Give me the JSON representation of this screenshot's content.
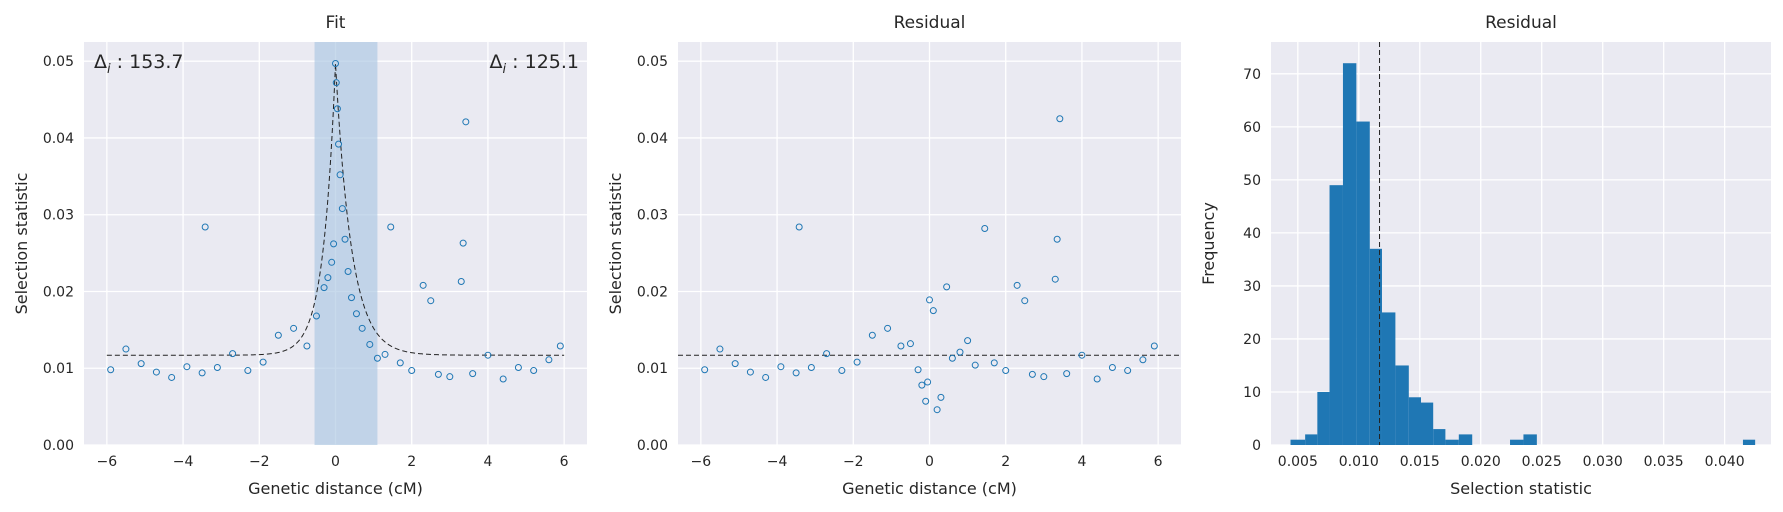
{
  "chart_data": [
    {
      "type": "scatter",
      "title": "Fit",
      "xlabel": "Genetic distance (cM)",
      "ylabel": "Selection statistic",
      "xlim": [
        -6.6,
        6.6
      ],
      "ylim": [
        0,
        0.0525
      ],
      "xticks": [
        -6,
        -4,
        -2,
        0,
        2,
        4,
        6
      ],
      "xtick_labels": [
        "−6",
        "−4",
        "−2",
        "0",
        "2",
        "4",
        "6"
      ],
      "yticks": [
        0,
        0.01,
        0.02,
        0.03,
        0.04,
        0.05
      ],
      "ytick_labels": [
        "0.00",
        "0.01",
        "0.02",
        "0.03",
        "0.04",
        "0.05"
      ],
      "grid": true,
      "annotations": [
        {
          "prefix": "Δ",
          "sub": "i",
          "suffix": " : 153.7",
          "position": "top-left"
        },
        {
          "prefix": "Δ",
          "sub": "i",
          "suffix": " : 125.1",
          "position": "top-right"
        }
      ],
      "shaded_span": {
        "x0": -0.55,
        "x1": 1.1
      },
      "fit_curve": {
        "baseline": 0.0117,
        "peak": 0.0497,
        "peak_x": 0.0,
        "left_decay": 0.32,
        "right_decay": 0.42
      },
      "points": {
        "x": [
          -5.9,
          -5.5,
          -5.1,
          -4.7,
          -4.3,
          -3.9,
          -3.5,
          -3.42,
          -3.1,
          -2.7,
          -2.3,
          -1.9,
          -1.5,
          -1.1,
          -0.75,
          -0.5,
          -0.3,
          -0.2,
          -0.1,
          -0.05,
          0.0,
          0.02,
          0.05,
          0.08,
          0.12,
          0.18,
          0.25,
          0.33,
          0.42,
          0.55,
          0.7,
          0.9,
          1.1,
          1.3,
          1.45,
          1.7,
          2.0,
          2.3,
          2.5,
          2.7,
          3.0,
          3.3,
          3.35,
          3.42,
          3.6,
          4.0,
          4.4,
          4.8,
          5.2,
          5.6,
          5.9
        ],
        "y": [
          0.0098,
          0.0125,
          0.0106,
          0.0095,
          0.0088,
          0.0102,
          0.0094,
          0.0284,
          0.0101,
          0.0119,
          0.0097,
          0.0108,
          0.0143,
          0.0152,
          0.0129,
          0.0168,
          0.0205,
          0.0218,
          0.0238,
          0.0262,
          0.0497,
          0.0472,
          0.0438,
          0.0392,
          0.0352,
          0.0308,
          0.0268,
          0.0226,
          0.0192,
          0.0171,
          0.0152,
          0.0131,
          0.0113,
          0.0118,
          0.0284,
          0.0107,
          0.0097,
          0.0208,
          0.0188,
          0.0092,
          0.0089,
          0.0213,
          0.0263,
          0.0421,
          0.0093,
          0.0117,
          0.0086,
          0.0101,
          0.0097,
          0.0111,
          0.0129
        ]
      }
    },
    {
      "type": "scatter",
      "title": "Residual",
      "xlabel": "Genetic distance (cM)",
      "ylabel": "Selection statistic",
      "xlim": [
        -6.6,
        6.6
      ],
      "ylim": [
        0,
        0.0525
      ],
      "xticks": [
        -6,
        -4,
        -2,
        0,
        2,
        4,
        6
      ],
      "xtick_labels": [
        "−6",
        "−4",
        "−2",
        "0",
        "2",
        "4",
        "6"
      ],
      "yticks": [
        0,
        0.01,
        0.02,
        0.03,
        0.04,
        0.05
      ],
      "ytick_labels": [
        "0.00",
        "0.01",
        "0.02",
        "0.03",
        "0.04",
        "0.05"
      ],
      "grid": true,
      "hline": 0.0117,
      "points": {
        "x": [
          -5.9,
          -5.5,
          -5.1,
          -4.7,
          -4.3,
          -3.9,
          -3.5,
          -3.42,
          -3.1,
          -2.7,
          -2.3,
          -1.9,
          -1.5,
          -1.1,
          -0.75,
          -0.5,
          -0.3,
          -0.2,
          -0.1,
          -0.05,
          0.0,
          0.1,
          0.2,
          0.3,
          0.45,
          0.6,
          0.8,
          1.0,
          1.2,
          1.45,
          1.7,
          2.0,
          2.3,
          2.5,
          2.7,
          3.0,
          3.3,
          3.35,
          3.42,
          3.6,
          4.0,
          4.4,
          4.8,
          5.2,
          5.6,
          5.9
        ],
        "y": [
          0.0098,
          0.0125,
          0.0106,
          0.0095,
          0.0088,
          0.0102,
          0.0094,
          0.0284,
          0.0101,
          0.0119,
          0.0097,
          0.0108,
          0.0143,
          0.0152,
          0.0129,
          0.0132,
          0.0098,
          0.0078,
          0.0057,
          0.0082,
          0.0189,
          0.0175,
          0.0046,
          0.0062,
          0.0206,
          0.0113,
          0.0121,
          0.0136,
          0.0104,
          0.0282,
          0.0107,
          0.0097,
          0.0208,
          0.0188,
          0.0092,
          0.0089,
          0.0216,
          0.0268,
          0.0425,
          0.0093,
          0.0117,
          0.0086,
          0.0101,
          0.0097,
          0.0111,
          0.0129
        ]
      }
    },
    {
      "type": "bar",
      "title": "Residual",
      "xlabel": "Selection statistic",
      "ylabel": "Frequency",
      "xlim": [
        0.0028,
        0.0438
      ],
      "ylim": [
        0,
        76
      ],
      "xticks": [
        0.005,
        0.01,
        0.015,
        0.02,
        0.025,
        0.03,
        0.035,
        0.04
      ],
      "xtick_labels": [
        "0.005",
        "0.010",
        "0.015",
        "0.020",
        "0.025",
        "0.030",
        "0.035",
        "0.040"
      ],
      "yticks": [
        0,
        10,
        20,
        30,
        40,
        50,
        60,
        70
      ],
      "ytick_labels": [
        "0",
        "10",
        "20",
        "30",
        "40",
        "50",
        "60",
        "70"
      ],
      "grid": true,
      "vline": 0.0117,
      "bin_edges": [
        0.0044,
        0.0056,
        0.0066,
        0.0076,
        0.0087,
        0.0098,
        0.0109,
        0.0119,
        0.013,
        0.0141,
        0.0151,
        0.0161,
        0.0171,
        0.0182,
        0.0193,
        0.0203,
        0.0214,
        0.0224,
        0.0235,
        0.0246,
        0.0256,
        0.0267,
        0.0277,
        0.0288,
        0.0299,
        0.0309,
        0.032,
        0.033,
        0.0341,
        0.0351,
        0.0362,
        0.0372,
        0.0383,
        0.0394,
        0.0404,
        0.0415,
        0.0425
      ],
      "counts": [
        1,
        2,
        10,
        49,
        72,
        61,
        37,
        25,
        15,
        9,
        8,
        3,
        1,
        2,
        0,
        0,
        0,
        1,
        2,
        0,
        0,
        0,
        0,
        0,
        0,
        0,
        0,
        0,
        0,
        0,
        0,
        0,
        0,
        0,
        0,
        1
      ]
    }
  ]
}
